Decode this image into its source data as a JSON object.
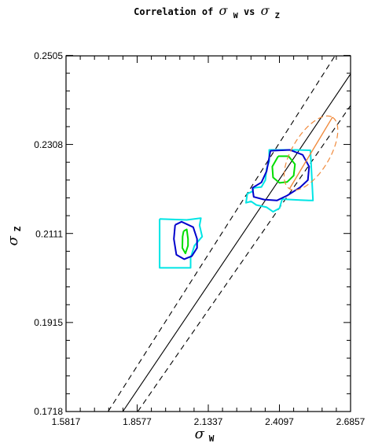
{
  "chart_data": {
    "type": "contour",
    "title": {
      "prefix": "Correlation of ",
      "var1_symbol": "σ",
      "var1_sub": "W",
      "middle": " vs ",
      "var2_symbol": "σ",
      "var2_sub": "Z"
    },
    "xlabel": {
      "symbol": "σ",
      "sub": "W"
    },
    "ylabel": {
      "symbol": "σ",
      "sub": "Z"
    },
    "xlim": [
      1.5817,
      2.6857
    ],
    "ylim": [
      0.1718,
      0.2505
    ],
    "xticks": [
      "1.5817",
      "1.8577",
      "2.1337",
      "2.4097",
      "2.6857"
    ],
    "yticks": [
      "0.1718",
      "0.1915",
      "0.2111",
      "0.2308",
      "0.2505"
    ],
    "colors": {
      "outer": "#00e5e5",
      "middle": "#0000cc",
      "inner": "#00dd00",
      "ellipse": "#f08a3c",
      "line": "#000000"
    },
    "series": [
      {
        "color": "cyan",
        "points": [
          [
            1.945,
            0.2144
          ],
          [
            2.05,
            0.2142
          ],
          [
            2.105,
            0.2146
          ],
          [
            2.1,
            0.213
          ],
          [
            2.11,
            0.2105
          ],
          [
            2.08,
            0.2085
          ],
          [
            2.065,
            0.2058
          ],
          [
            2.065,
            0.2036
          ],
          [
            1.945,
            0.2036
          ],
          [
            1.945,
            0.2144
          ]
        ]
      },
      {
        "color": "cyan",
        "points": [
          [
            2.305,
            0.2205
          ],
          [
            2.31,
            0.2213
          ],
          [
            2.34,
            0.2215
          ],
          [
            2.355,
            0.223
          ],
          [
            2.36,
            0.2255
          ],
          [
            2.37,
            0.2272
          ],
          [
            2.37,
            0.2297
          ],
          [
            2.47,
            0.2297
          ],
          [
            2.53,
            0.2296
          ],
          [
            2.535,
            0.224
          ],
          [
            2.54,
            0.2185
          ],
          [
            2.525,
            0.2185
          ],
          [
            2.42,
            0.2188
          ],
          [
            2.41,
            0.2168
          ],
          [
            2.385,
            0.216
          ],
          [
            2.36,
            0.217
          ],
          [
            2.32,
            0.2175
          ],
          [
            2.3,
            0.2183
          ],
          [
            2.28,
            0.218
          ],
          [
            2.285,
            0.22
          ],
          [
            2.305,
            0.2205
          ]
        ]
      },
      {
        "color": "blue",
        "points": [
          [
            2.005,
            0.2131
          ],
          [
            2.03,
            0.2138
          ],
          [
            2.075,
            0.2126
          ],
          [
            2.09,
            0.21
          ],
          [
            2.09,
            0.208
          ],
          [
            2.07,
            0.2062
          ],
          [
            2.04,
            0.2055
          ],
          [
            2.01,
            0.2065
          ],
          [
            2.0,
            0.21
          ],
          [
            2.005,
            0.2131
          ]
        ]
      },
      {
        "color": "blue",
        "points": [
          [
            2.375,
            0.2295
          ],
          [
            2.45,
            0.2297
          ],
          [
            2.5,
            0.2286
          ],
          [
            2.525,
            0.226
          ],
          [
            2.52,
            0.223
          ],
          [
            2.49,
            0.2214
          ],
          [
            2.44,
            0.2196
          ],
          [
            2.4,
            0.2185
          ],
          [
            2.35,
            0.2187
          ],
          [
            2.31,
            0.2193
          ],
          [
            2.305,
            0.2213
          ],
          [
            2.34,
            0.2225
          ],
          [
            2.36,
            0.225
          ],
          [
            2.37,
            0.228
          ],
          [
            2.375,
            0.2295
          ]
        ]
      },
      {
        "color": "green",
        "points": [
          [
            2.038,
            0.2117
          ],
          [
            2.05,
            0.2121
          ],
          [
            2.055,
            0.21
          ],
          [
            2.055,
            0.2085
          ],
          [
            2.045,
            0.2068
          ],
          [
            2.033,
            0.208
          ],
          [
            2.034,
            0.2105
          ],
          [
            2.038,
            0.2117
          ]
        ]
      },
      {
        "color": "green",
        "points": [
          [
            2.405,
            0.2283
          ],
          [
            2.445,
            0.2283
          ],
          [
            2.47,
            0.2265
          ],
          [
            2.465,
            0.224
          ],
          [
            2.44,
            0.2226
          ],
          [
            2.41,
            0.2224
          ],
          [
            2.385,
            0.2236
          ],
          [
            2.382,
            0.226
          ],
          [
            2.405,
            0.2283
          ]
        ]
      }
    ],
    "ellipse": {
      "center": [
        2.532,
        0.229
      ],
      "angle_deg": 59,
      "semi_axes_px": [
        53,
        24
      ]
    },
    "reference_lines": [
      {
        "style": "solid",
        "from": [
          1.802,
          0.1718
        ],
        "to": [
          2.6857,
          0.2465
        ]
      },
      {
        "style": "dashed",
        "from": [
          1.745,
          0.1718
        ],
        "to": [
          2.625,
          0.2505
        ]
      },
      {
        "style": "dashed",
        "from": [
          1.86,
          0.1718
        ],
        "to": [
          2.6857,
          0.2395
        ]
      }
    ]
  }
}
